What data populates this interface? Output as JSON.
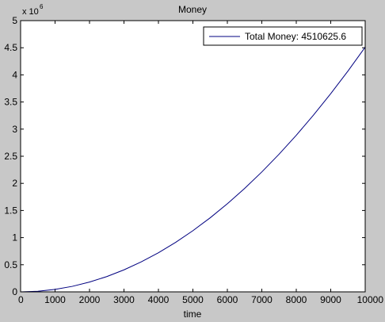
{
  "chart_data": {
    "type": "line",
    "title": "Money",
    "xlabel": "time",
    "ylabel": "",
    "xlim": [
      0,
      10000
    ],
    "ylim": [
      0,
      5000000
    ],
    "x_ticks": [
      0,
      1000,
      2000,
      3000,
      4000,
      5000,
      6000,
      7000,
      8000,
      9000,
      10000
    ],
    "x_tick_labels": [
      "0",
      "1000",
      "2000",
      "3000",
      "4000",
      "5000",
      "6000",
      "7000",
      "8000",
      "9000",
      "10000"
    ],
    "y_ticks": [
      0,
      500000,
      1000000,
      1500000,
      2000000,
      2500000,
      3000000,
      3500000,
      4000000,
      4500000,
      5000000
    ],
    "y_tick_labels": [
      "0",
      "0.5",
      "1",
      "1.5",
      "2",
      "2.5",
      "3",
      "3.5",
      "4",
      "4.5",
      "5"
    ],
    "y_exponent_base": "x 10",
    "y_exponent_power": "6",
    "grid": false,
    "legend_position": "top-right",
    "series": [
      {
        "name": "Total Money: 4510625.6",
        "color": "#000080",
        "x": [
          0,
          500,
          1000,
          1500,
          2000,
          2500,
          3000,
          3500,
          4000,
          4500,
          5000,
          5500,
          6000,
          6500,
          7000,
          7500,
          8000,
          8500,
          9000,
          9500,
          10000
        ],
        "y": [
          0,
          11300,
          45100,
          101500,
          180400,
          281900,
          406000,
          552600,
          721700,
          913400,
          1127700,
          1364500,
          1623800,
          1905700,
          2210200,
          2537200,
          2886800,
          3259000,
          3653600,
          4070900,
          4510625.6
        ]
      }
    ]
  }
}
